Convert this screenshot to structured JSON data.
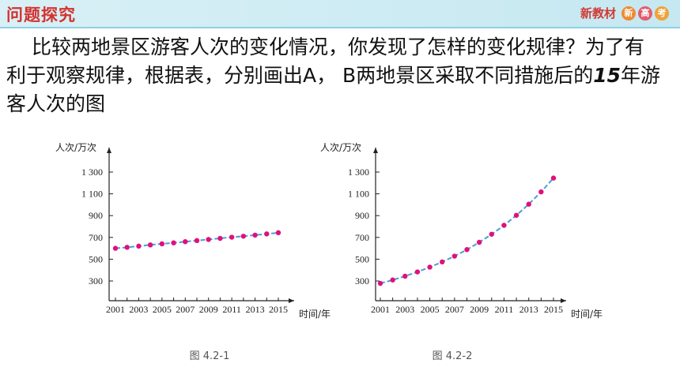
{
  "header": {
    "title": "问题探究",
    "brand": "新教材",
    "badges": [
      "新",
      "高",
      "考"
    ]
  },
  "paragraph": {
    "text_before": "比较两地景区游客人次的变化情况，你发现了怎样的变化规律？为了有利于观察规律，根据表，分别画出A， B两地景区采取不同措施后的",
    "number": "15",
    "text_after": "年游客人次的图"
  },
  "colors": {
    "series": "#4a9fd5",
    "point": "#e0107e",
    "title_red": "#d4322f"
  },
  "chart_data": [
    {
      "type": "line",
      "caption": "图 4.2-1",
      "ylabel": "人次/万次",
      "xlabel": "时间/年",
      "yticks": [
        "1 300",
        "1 100",
        "900",
        "700",
        "500",
        "300"
      ],
      "ytick_values": [
        1300,
        1100,
        900,
        700,
        500,
        300
      ],
      "xticks": [
        "2001",
        "2003",
        "2005",
        "2007",
        "2009",
        "2011",
        "2013",
        "2015"
      ],
      "ylim": [
        100,
        1450
      ],
      "x": [
        2001,
        2002,
        2003,
        2004,
        2005,
        2006,
        2007,
        2008,
        2009,
        2010,
        2011,
        2012,
        2013,
        2014,
        2015
      ],
      "values": [
        600,
        609,
        620,
        631,
        641,
        650,
        661,
        671,
        681,
        691,
        702,
        711,
        721,
        732,
        743
      ]
    },
    {
      "type": "line",
      "caption": "图 4.2-2",
      "ylabel": "人次/万次",
      "xlabel": "时间/年",
      "yticks": [
        "1 300",
        "1 100",
        "900",
        "700",
        "500",
        "300"
      ],
      "ytick_values": [
        1300,
        1100,
        900,
        700,
        500,
        300
      ],
      "xticks": [
        "2001",
        "2003",
        "2005",
        "2007",
        "2009",
        "2011",
        "2013",
        "2015"
      ],
      "ylim": [
        100,
        1450
      ],
      "x": [
        2001,
        2002,
        2003,
        2004,
        2005,
        2006,
        2007,
        2008,
        2009,
        2010,
        2011,
        2012,
        2013,
        2014,
        2015
      ],
      "values": [
        278,
        309,
        344,
        383,
        427,
        475,
        528,
        588,
        655,
        729,
        811,
        903,
        1005,
        1118,
        1245
      ]
    }
  ]
}
